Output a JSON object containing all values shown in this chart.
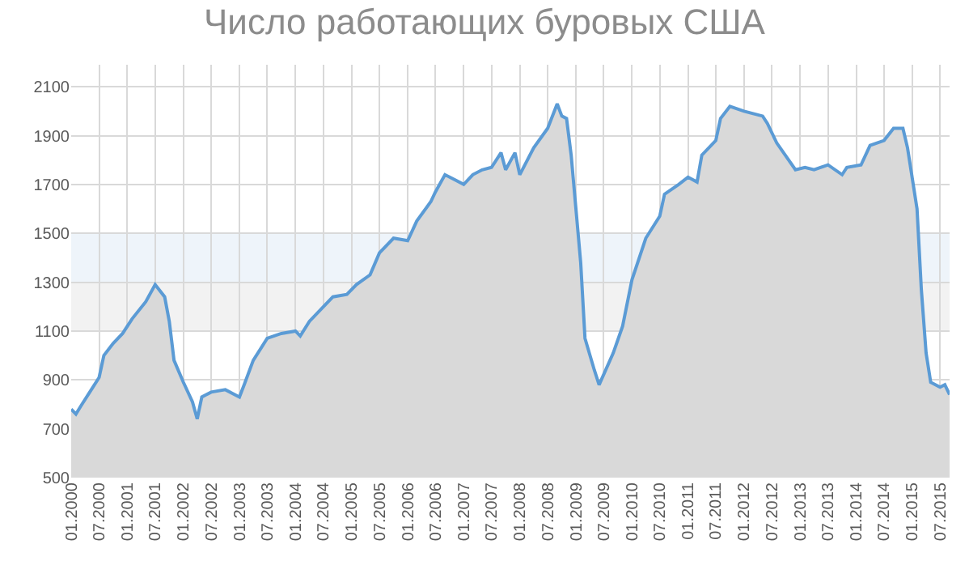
{
  "chart_data": {
    "type": "area",
    "title": "Число работающих буровых США",
    "x": [
      "2000-01",
      "2000-02",
      "2000-03",
      "2000-05",
      "2000-07",
      "2000-08",
      "2000-10",
      "2000-12",
      "2001-02",
      "2001-05",
      "2001-07",
      "2001-09",
      "2001-10",
      "2001-11",
      "2002-01",
      "2002-03",
      "2002-04",
      "2002-05",
      "2002-07",
      "2002-10",
      "2003-01",
      "2003-02",
      "2003-04",
      "2003-07",
      "2003-10",
      "2004-01",
      "2004-02",
      "2004-04",
      "2004-07",
      "2004-09",
      "2004-12",
      "2005-02",
      "2005-05",
      "2005-07",
      "2005-10",
      "2006-01",
      "2006-03",
      "2006-06",
      "2006-07",
      "2006-09",
      "2006-11",
      "2007-01",
      "2007-03",
      "2007-05",
      "2007-07",
      "2007-09",
      "2007-10",
      "2007-12",
      "2008-01",
      "2008-04",
      "2008-07",
      "2008-09",
      "2008-10",
      "2008-11",
      "2008-12",
      "2009-02",
      "2009-03",
      "2009-05",
      "2009-06",
      "2009-09",
      "2009-11",
      "2010-01",
      "2010-04",
      "2010-07",
      "2010-08",
      "2010-11",
      "2011-01",
      "2011-03",
      "2011-04",
      "2011-07",
      "2011-08",
      "2011-10",
      "2012-01",
      "2012-03",
      "2012-05",
      "2012-06",
      "2012-08",
      "2012-12",
      "2013-02",
      "2013-04",
      "2013-07",
      "2013-10",
      "2013-11",
      "2014-02",
      "2014-04",
      "2014-07",
      "2014-09",
      "2014-11",
      "2014-12",
      "2015-02",
      "2015-03",
      "2015-04",
      "2015-05",
      "2015-07",
      "2015-08",
      "2015-09"
    ],
    "series": [
      {
        "color": "#5b9bd5",
        "values": [
          780,
          760,
          790,
          850,
          910,
          1000,
          1050,
          1090,
          1150,
          1220,
          1290,
          1240,
          1140,
          980,
          890,
          810,
          740,
          830,
          850,
          860,
          830,
          880,
          980,
          1070,
          1090,
          1100,
          1080,
          1140,
          1200,
          1240,
          1250,
          1290,
          1330,
          1420,
          1480,
          1470,
          1550,
          1630,
          1670,
          1740,
          1720,
          1700,
          1740,
          1760,
          1770,
          1830,
          1760,
          1830,
          1740,
          1850,
          1930,
          2030,
          1980,
          1970,
          1820,
          1380,
          1070,
          940,
          880,
          1010,
          1120,
          1310,
          1480,
          1570,
          1660,
          1700,
          1730,
          1710,
          1820,
          1880,
          1970,
          2020,
          2000,
          1990,
          1980,
          1950,
          1870,
          1760,
          1770,
          1760,
          1780,
          1740,
          1770,
          1780,
          1860,
          1880,
          1930,
          1930,
          1850,
          1600,
          1270,
          1010,
          890,
          870,
          880,
          840
        ]
      }
    ],
    "xlim": [
      "2000-01",
      "2015-09"
    ],
    "xticks": [
      {
        "value": "2000-01",
        "label": "01.2000"
      },
      {
        "value": "2000-07",
        "label": "07.2000"
      },
      {
        "value": "2001-01",
        "label": "01.2001"
      },
      {
        "value": "2001-07",
        "label": "07.2001"
      },
      {
        "value": "2002-01",
        "label": "01.2002"
      },
      {
        "value": "2002-07",
        "label": "07.2002"
      },
      {
        "value": "2003-01",
        "label": "01.2003"
      },
      {
        "value": "2003-07",
        "label": "07.2003"
      },
      {
        "value": "2004-01",
        "label": "01.2004"
      },
      {
        "value": "2004-07",
        "label": "07.2004"
      },
      {
        "value": "2005-01",
        "label": "01.2005"
      },
      {
        "value": "2005-07",
        "label": "07.2005"
      },
      {
        "value": "2006-01",
        "label": "01.2006"
      },
      {
        "value": "2006-07",
        "label": "07.2006"
      },
      {
        "value": "2007-01",
        "label": "01.2007"
      },
      {
        "value": "2007-07",
        "label": "07.2007"
      },
      {
        "value": "2008-01",
        "label": "01.2008"
      },
      {
        "value": "2008-07",
        "label": "07.2008"
      },
      {
        "value": "2009-01",
        "label": "01.2009"
      },
      {
        "value": "2009-07",
        "label": "07.2009"
      },
      {
        "value": "2010-01",
        "label": "01.2010"
      },
      {
        "value": "2010-07",
        "label": "07.2010"
      },
      {
        "value": "2011-01",
        "label": "01.2011"
      },
      {
        "value": "2011-07",
        "label": "07.2011"
      },
      {
        "value": "2012-01",
        "label": "01.2012"
      },
      {
        "value": "2012-07",
        "label": "07.2012"
      },
      {
        "value": "2013-01",
        "label": "01.2013"
      },
      {
        "value": "2013-07",
        "label": "07.2013"
      },
      {
        "value": "2014-01",
        "label": "01.2014"
      },
      {
        "value": "2014-07",
        "label": "07.2014"
      },
      {
        "value": "2015-01",
        "label": "01.2015"
      },
      {
        "value": "2015-07",
        "label": "07.2015"
      }
    ],
    "ylim": [
      500,
      2190
    ],
    "yticks": [
      500,
      700,
      900,
      1100,
      1300,
      1500,
      1700,
      1900,
      2100
    ],
    "bands": [
      {
        "axis": "y",
        "from": 1300,
        "to": 1500,
        "color": "#eef4fa"
      },
      {
        "axis": "y",
        "from": 1100,
        "to": 1300,
        "color": "#f2f2f2"
      }
    ],
    "grid": true
  }
}
